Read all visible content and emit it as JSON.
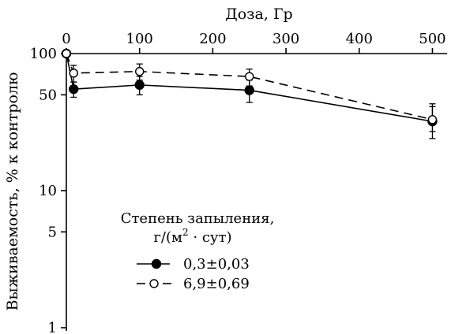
{
  "chart_data": {
    "type": "line",
    "xlabel": "Доза, Гр",
    "ylabel": "Выживаемость, % к контролю",
    "x_axis_position": "top",
    "y_scale": "log",
    "xlim": [
      0,
      520
    ],
    "ylim": [
      1,
      100
    ],
    "x_ticks": [
      0,
      100,
      200,
      300,
      400,
      500
    ],
    "x_tick_labels": [
      "0",
      "100",
      "200",
      "300",
      "400",
      "500"
    ],
    "y_ticks": [
      100,
      50,
      10,
      5,
      1
    ],
    "y_tick_labels": [
      "100",
      "50",
      "10",
      "5",
      "1"
    ],
    "grid": false,
    "legend": {
      "title_line1": "Степень запыления,",
      "title_line2_prefix": "г/(м",
      "title_line2_sup": "2",
      "title_line2_suffix": " · сут)",
      "placement": "center-left"
    },
    "series": [
      {
        "name": "0,3±0,03",
        "marker": "filled-circle",
        "line_style": "solid",
        "color": "#000000",
        "x": [
          0,
          10,
          100,
          250,
          500
        ],
        "y": [
          100,
          55,
          59,
          54,
          32
        ],
        "err_low": [
          0,
          48,
          50,
          44,
          24
        ],
        "err_high": [
          0,
          62,
          68,
          64,
          41
        ]
      },
      {
        "name": "6,9±0,69",
        "marker": "open-circle",
        "line_style": "dashed",
        "color": "#000000",
        "x": [
          0,
          10,
          100,
          250,
          500
        ],
        "y": [
          100,
          72,
          74,
          68,
          33
        ],
        "err_low": [
          0,
          62,
          64,
          58,
          27
        ],
        "err_high": [
          0,
          82,
          84,
          77,
          43
        ]
      }
    ]
  }
}
